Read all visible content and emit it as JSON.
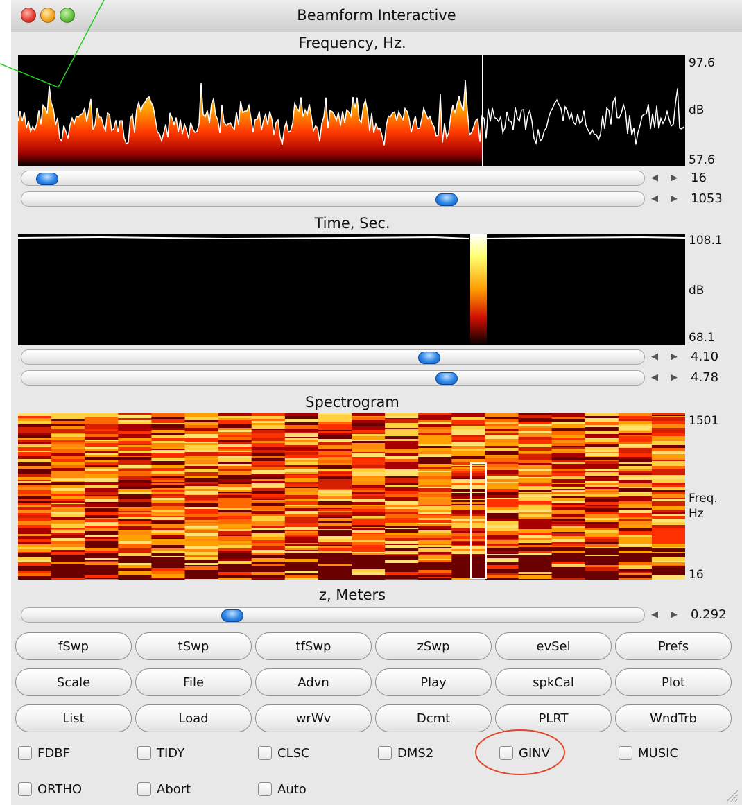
{
  "window": {
    "title": "Beamform Interactive"
  },
  "frequency_panel": {
    "title": "Frequency, Hz.",
    "axis_top": "97.6",
    "axis_mid": "dB",
    "axis_bottom": "57.6"
  },
  "frequency_sliders": [
    {
      "value": "16",
      "position": 0.02
    },
    {
      "value": "1053",
      "position": 0.69
    }
  ],
  "time_panel": {
    "title": "Time, Sec.",
    "axis_top": "108.1",
    "axis_mid": "dB",
    "axis_bottom": "68.1"
  },
  "time_sliders": [
    {
      "value": "4.10",
      "position": 0.66
    },
    {
      "value": "4.78",
      "position": 0.69
    }
  ],
  "spectrogram_panel": {
    "title": "Spectrogram",
    "axis_top": "1501",
    "axis_mid_1": "Freq.",
    "axis_mid_2": "Hz",
    "axis_bottom": "16"
  },
  "z_panel": {
    "title": "z, Meters",
    "slider": {
      "value": "0.292",
      "position": 0.33
    }
  },
  "buttons_row1": [
    "fSwp",
    "tSwp",
    "tfSwp",
    "zSwp",
    "evSel",
    "Prefs"
  ],
  "buttons_row2": [
    "Scale",
    "File",
    "Advn",
    "Play",
    "spkCal",
    "Plot"
  ],
  "buttons_row3": [
    "List",
    "Load",
    "wrWv",
    "Dcmt",
    "PLRT",
    "WndTrb"
  ],
  "checkboxes_row1": [
    "FDBF",
    "TIDY",
    "CLSC",
    "DMS2",
    "GINV",
    "MUSIC"
  ],
  "checkboxes_row2": [
    "ORTHO",
    "Abort",
    "Auto"
  ],
  "colors": {
    "annotation_line": "#22cc22",
    "annotation_circle": "#e0462a",
    "slider_knob": "#2f86e6"
  }
}
